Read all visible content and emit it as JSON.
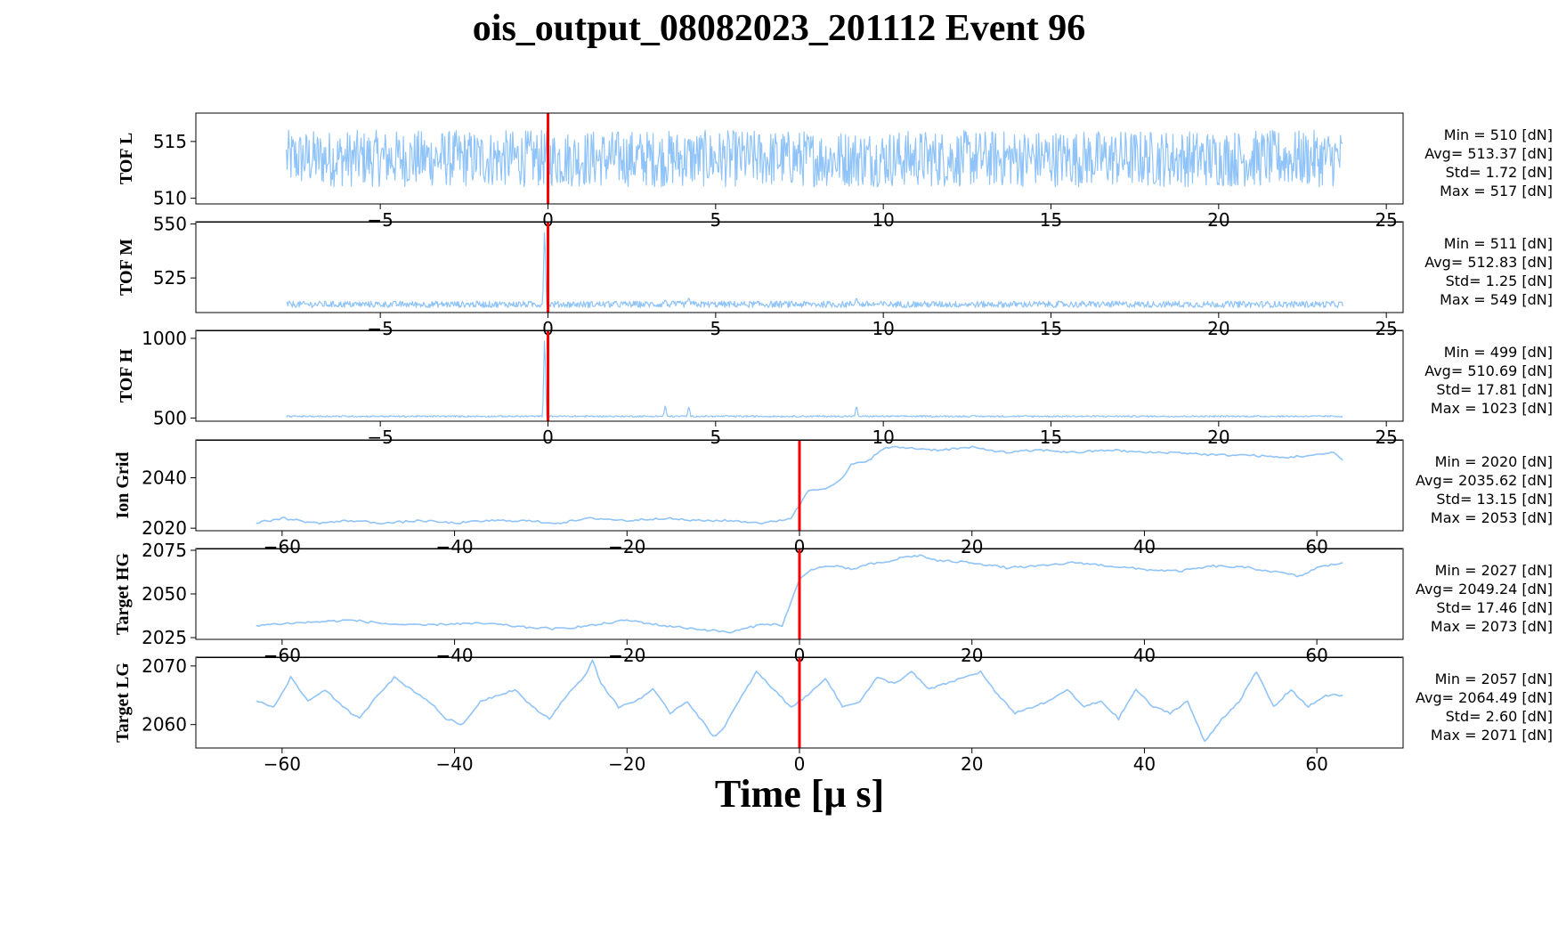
{
  "figure": {
    "title": "ois_output_08082023_201112 Event 96",
    "xlabel": "Time [μ s]",
    "trace_color": "#90c4f8",
    "marker_color": "#ff0000"
  },
  "chart_data": [
    {
      "type": "line",
      "name": "TOF L",
      "ylabel": "TOF L",
      "xlim": [
        -10.5,
        25.5
      ],
      "ylim": [
        509.5,
        517.5
      ],
      "xticks": [
        -5,
        0,
        5,
        10,
        15,
        20,
        25
      ],
      "yticks": [
        510,
        515
      ],
      "x_range": [
        -7.8,
        23.7
      ],
      "baseline": 513.37,
      "noise": {
        "min": 511,
        "max": 516
      },
      "spikes": [],
      "vline": 0,
      "stats": [
        "Min = 510 [dN]",
        "Avg= 513.37 [dN]",
        "Std= 1.72 [dN]",
        "Max = 517 [dN]"
      ]
    },
    {
      "type": "line",
      "name": "TOF M",
      "ylabel": "TOF M",
      "xlim": [
        -10.5,
        25.5
      ],
      "ylim": [
        509,
        551
      ],
      "xticks": [
        -5,
        0,
        5,
        10,
        15,
        20,
        25
      ],
      "yticks": [
        525,
        550
      ],
      "x_range": [
        -7.8,
        23.7
      ],
      "baseline": 512.8,
      "noise": {
        "min": 511,
        "max": 514
      },
      "spikes": [
        {
          "x": -0.1,
          "y": 549
        },
        {
          "x": 3.5,
          "y": 515
        },
        {
          "x": 4.2,
          "y": 516
        },
        {
          "x": 9.2,
          "y": 516
        }
      ],
      "vline": 0,
      "stats": [
        "Min = 511 [dN]",
        "Avg= 512.83 [dN]",
        "Std= 1.25 [dN]",
        "Max = 549 [dN]"
      ]
    },
    {
      "type": "line",
      "name": "TOF H",
      "ylabel": "TOF H",
      "xlim": [
        -10.5,
        25.5
      ],
      "ylim": [
        480,
        1050
      ],
      "xticks": [
        -5,
        0,
        5,
        10,
        15,
        20,
        25
      ],
      "yticks": [
        500,
        1000
      ],
      "x_range": [
        -7.8,
        23.7
      ],
      "baseline": 510.7,
      "noise": {
        "min": 505,
        "max": 515
      },
      "spikes": [
        {
          "x": -0.1,
          "y": 1023
        },
        {
          "x": 3.5,
          "y": 580
        },
        {
          "x": 4.2,
          "y": 575
        },
        {
          "x": 9.2,
          "y": 580
        }
      ],
      "vline": 0,
      "stats": [
        "Min = 499 [dN]",
        "Avg= 510.69 [dN]",
        "Std= 17.81 [dN]",
        "Max = 1023 [dN]"
      ]
    },
    {
      "type": "line",
      "name": "Ion Grid",
      "ylabel": "Ion Grid",
      "xlim": [
        -70,
        70
      ],
      "ylim": [
        2019,
        2055
      ],
      "xticks": [
        -60,
        -40,
        -20,
        0,
        20,
        40,
        60
      ],
      "yticks": [
        2020,
        2040
      ],
      "x": [
        -63,
        -60,
        -56,
        -52,
        -48,
        -44,
        -40,
        -36,
        -32,
        -28,
        -24,
        -20,
        -16,
        -12,
        -8,
        -4,
        -1,
        0,
        1,
        3,
        4,
        5,
        6,
        8,
        10,
        12,
        16,
        20,
        24,
        28,
        32,
        36,
        40,
        44,
        48,
        52,
        56,
        60,
        62,
        63
      ],
      "y": [
        2022,
        2024,
        2022,
        2023,
        2022,
        2023,
        2022,
        2023,
        2023,
        2022,
        2024,
        2023,
        2024,
        2023,
        2023,
        2022,
        2024,
        2029,
        2035,
        2036,
        2037,
        2040,
        2045,
        2047,
        2052,
        2052,
        2051,
        2052,
        2050,
        2051,
        2050,
        2051,
        2050,
        2050,
        2049,
        2049,
        2048,
        2049,
        2050,
        2047
      ],
      "vline": 0,
      "stats": [
        "Min = 2020 [dN]",
        "Avg= 2035.62 [dN]",
        "Std= 13.15 [dN]",
        "Max = 2053 [dN]"
      ]
    },
    {
      "type": "line",
      "name": "Target HG",
      "ylabel": "Target HG",
      "xlim": [
        -70,
        70
      ],
      "ylim": [
        2024,
        2076
      ],
      "xticks": [
        -60,
        -40,
        -20,
        0,
        20,
        40,
        60
      ],
      "yticks": [
        2025,
        2050,
        2075
      ],
      "x": [
        -63,
        -60,
        -56,
        -52,
        -48,
        -44,
        -40,
        -36,
        -32,
        -28,
        -24,
        -20,
        -16,
        -12,
        -8,
        -4,
        -2,
        0,
        1,
        2,
        4,
        6,
        8,
        10,
        12,
        14,
        16,
        20,
        24,
        28,
        32,
        36,
        40,
        44,
        48,
        52,
        56,
        58,
        60,
        63
      ],
      "y": [
        2032,
        2033,
        2034,
        2035,
        2033,
        2032,
        2033,
        2033,
        2031,
        2030,
        2032,
        2035,
        2032,
        2030,
        2028,
        2033,
        2032,
        2058,
        2063,
        2065,
        2066,
        2064,
        2067,
        2068,
        2071,
        2072,
        2069,
        2068,
        2065,
        2066,
        2068,
        2066,
        2064,
        2063,
        2066,
        2065,
        2062,
        2060,
        2065,
        2068
      ],
      "vline": 0,
      "stats": [
        "Min = 2027 [dN]",
        "Avg= 2049.24 [dN]",
        "Std= 17.46 [dN]",
        "Max = 2073 [dN]"
      ]
    },
    {
      "type": "line",
      "name": "Target LG",
      "ylabel": "Target LG",
      "xlim": [
        -70,
        70
      ],
      "ylim": [
        2056,
        2071.5
      ],
      "xticks": [
        -60,
        -40,
        -20,
        0,
        20,
        40,
        60
      ],
      "yticks": [
        2060,
        2070
      ],
      "x": [
        -63,
        -61,
        -59,
        -57,
        -55,
        -53,
        -51,
        -49,
        -47,
        -45,
        -43,
        -41,
        -39,
        -37,
        -35,
        -33,
        -31,
        -29,
        -27,
        -25,
        -24,
        -23,
        -21,
        -19,
        -17,
        -15,
        -13,
        -11,
        -10,
        -9,
        -7,
        -5,
        -3,
        -1,
        0,
        1,
        3,
        5,
        7,
        9,
        11,
        13,
        15,
        17,
        19,
        21,
        23,
        25,
        27,
        29,
        31,
        33,
        35,
        37,
        39,
        41,
        43,
        45,
        47,
        49,
        51,
        53,
        55,
        57,
        59,
        61,
        63
      ],
      "y": [
        2064,
        2063,
        2068,
        2064,
        2066,
        2063,
        2061,
        2065,
        2068,
        2066,
        2064,
        2061,
        2060,
        2064,
        2065,
        2066,
        2063,
        2061,
        2065,
        2068,
        2071,
        2067,
        2063,
        2064,
        2066,
        2062,
        2064,
        2060,
        2058,
        2059,
        2064,
        2069,
        2066,
        2063,
        2064,
        2065,
        2068,
        2063,
        2064,
        2068,
        2067,
        2069,
        2066,
        2067,
        2068,
        2069,
        2065,
        2062,
        2063,
        2064,
        2066,
        2063,
        2064,
        2061,
        2066,
        2063,
        2062,
        2064,
        2057,
        2061,
        2064,
        2069,
        2063,
        2066,
        2063,
        2065,
        2065
      ],
      "vline": 0,
      "stats": [
        "Min = 2057 [dN]",
        "Avg= 2064.49 [dN]",
        "Std= 2.60 [dN]",
        "Max = 2071 [dN]"
      ]
    }
  ]
}
